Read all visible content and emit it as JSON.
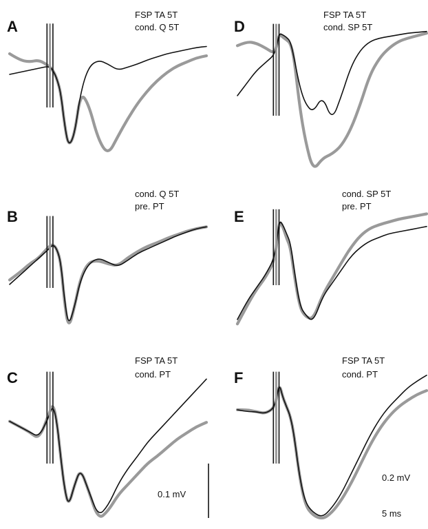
{
  "figure": {
    "panels": [
      {
        "id": "A",
        "letter": "A",
        "label_lines": [
          "FSP TA 5T",
          "cond. Q 5T"
        ]
      },
      {
        "id": "D",
        "letter": "D",
        "label_lines": [
          "FSP TA 5T",
          "cond. SP 5T"
        ]
      },
      {
        "id": "B",
        "letter": "B",
        "label_lines": [
          "cond. Q 5T",
          "pre. PT"
        ]
      },
      {
        "id": "E",
        "letter": "E",
        "label_lines": [
          "cond. SP 5T",
          "pre. PT"
        ]
      },
      {
        "id": "C",
        "letter": "C",
        "label_lines": [
          "FSP TA 5T",
          "cond. PT"
        ]
      },
      {
        "id": "F",
        "letter": "F",
        "label_lines": [
          "FSP TA 5T",
          "cond. PT"
        ]
      }
    ],
    "scale_bars": {
      "C": {
        "label": "0.1 mV"
      },
      "F_voltage": {
        "label": "0.2 mV"
      },
      "F_time": {
        "label": "5 ms"
      }
    },
    "colors": {
      "trace_black": "#111111",
      "trace_gray": "#9a9a9a"
    }
  },
  "chart_data": [
    {
      "type": "line",
      "panel": "A",
      "series": [
        {
          "color": "black",
          "x": [
            0,
            5,
            10,
            15,
            20,
            22,
            24,
            26,
            28,
            30,
            33,
            36,
            40,
            45,
            50,
            55,
            60,
            65,
            70,
            75,
            80,
            85,
            90,
            95,
            100
          ],
          "y": [
            -0.02,
            0.0,
            0.02,
            0.04,
            0.06,
            0.02,
            -0.06,
            -0.2,
            -0.52,
            -0.72,
            -0.6,
            -0.2,
            0.05,
            0.12,
            0.08,
            0.02,
            0.05,
            0.08,
            0.12,
            0.15,
            0.18,
            0.2,
            0.22,
            0.24,
            0.25
          ]
        },
        {
          "color": "gray",
          "x": [
            0,
            5,
            10,
            15,
            20,
            22,
            24,
            26,
            28,
            30,
            33,
            36,
            40,
            45,
            50,
            55,
            60,
            65,
            70,
            75,
            80,
            85,
            90,
            95,
            100
          ],
          "y": [
            0.18,
            0.12,
            0.1,
            0.12,
            0.06,
            0.02,
            -0.06,
            -0.2,
            -0.52,
            -0.72,
            -0.6,
            -0.2,
            -0.3,
            -0.65,
            -0.8,
            -0.62,
            -0.45,
            -0.3,
            -0.18,
            -0.08,
            0.0,
            0.06,
            0.1,
            0.14,
            0.16
          ]
        }
      ]
    },
    {
      "type": "line",
      "panel": "D",
      "series": [
        {
          "color": "black",
          "x": [
            0,
            5,
            10,
            15,
            20,
            22,
            24,
            26,
            28,
            30,
            33,
            36,
            40,
            45,
            50,
            55,
            60,
            65,
            70,
            75,
            80,
            85,
            90,
            95,
            100
          ],
          "y": [
            -0.45,
            -0.3,
            -0.15,
            -0.05,
            0.05,
            0.3,
            0.28,
            0.25,
            0.2,
            0.0,
            -0.35,
            -0.55,
            -0.65,
            -0.45,
            -0.75,
            -0.45,
            -0.1,
            0.1,
            0.2,
            0.24,
            0.26,
            0.28,
            0.3,
            0.31,
            0.32
          ]
        },
        {
          "color": "gray",
          "x": [
            0,
            5,
            10,
            15,
            20,
            22,
            24,
            26,
            28,
            30,
            33,
            36,
            40,
            45,
            50,
            55,
            60,
            65,
            70,
            75,
            80,
            85,
            90,
            95,
            100
          ],
          "y": [
            0.15,
            0.2,
            0.18,
            0.12,
            0.05,
            0.3,
            0.25,
            0.22,
            0.18,
            0.0,
            -0.6,
            -1.0,
            -1.35,
            -1.2,
            -1.15,
            -1.05,
            -0.85,
            -0.55,
            -0.2,
            0.0,
            0.12,
            0.2,
            0.24,
            0.27,
            0.3
          ]
        }
      ]
    },
    {
      "type": "line",
      "panel": "B",
      "series": [
        {
          "color": "black",
          "x": [
            0,
            5,
            10,
            15,
            20,
            22,
            24,
            26,
            28,
            30,
            33,
            36,
            40,
            45,
            50,
            55,
            60,
            65,
            70,
            75,
            80,
            85,
            90,
            95,
            100
          ],
          "y": [
            -0.35,
            -0.25,
            -0.15,
            -0.05,
            0.05,
            0.1,
            0.05,
            -0.1,
            -0.55,
            -0.82,
            -0.6,
            -0.3,
            -0.12,
            -0.05,
            -0.1,
            -0.15,
            -0.08,
            0.0,
            0.05,
            0.1,
            0.15,
            0.2,
            0.24,
            0.28,
            0.3
          ]
        },
        {
          "color": "gray",
          "x": [
            0,
            5,
            10,
            15,
            20,
            22,
            24,
            26,
            28,
            30,
            33,
            36,
            40,
            45,
            50,
            55,
            60,
            65,
            70,
            75,
            80,
            85,
            90,
            95,
            100
          ],
          "y": [
            -0.3,
            -0.22,
            -0.12,
            -0.05,
            0.08,
            0.1,
            0.05,
            -0.1,
            -0.58,
            -0.85,
            -0.6,
            -0.28,
            -0.1,
            -0.08,
            -0.12,
            -0.14,
            -0.05,
            0.02,
            0.08,
            0.12,
            0.17,
            0.21,
            0.25,
            0.28,
            0.3
          ]
        }
      ]
    },
    {
      "type": "line",
      "panel": "E",
      "series": [
        {
          "color": "black",
          "x": [
            0,
            5,
            10,
            15,
            20,
            22,
            24,
            26,
            28,
            30,
            33,
            36,
            40,
            45,
            50,
            55,
            60,
            65,
            70,
            75,
            80,
            85,
            90,
            95,
            100
          ],
          "y": [
            -0.75,
            -0.55,
            -0.4,
            -0.25,
            -0.05,
            0.35,
            0.3,
            0.2,
            0.1,
            -0.2,
            -0.6,
            -0.7,
            -0.78,
            -0.5,
            -0.35,
            -0.2,
            -0.05,
            0.05,
            0.12,
            0.16,
            0.2,
            0.22,
            0.24,
            0.26,
            0.28
          ]
        },
        {
          "color": "gray",
          "x": [
            0,
            5,
            10,
            15,
            20,
            22,
            24,
            26,
            28,
            30,
            33,
            36,
            40,
            45,
            50,
            55,
            60,
            65,
            70,
            75,
            80,
            85,
            90,
            95,
            100
          ],
          "y": [
            -0.8,
            -0.6,
            -0.42,
            -0.28,
            -0.08,
            0.35,
            0.28,
            0.15,
            0.05,
            -0.25,
            -0.62,
            -0.72,
            -0.75,
            -0.48,
            -0.3,
            -0.12,
            0.05,
            0.18,
            0.26,
            0.3,
            0.33,
            0.36,
            0.38,
            0.4,
            0.42
          ]
        }
      ]
    },
    {
      "type": "line",
      "panel": "C",
      "series": [
        {
          "color": "black",
          "x": [
            0,
            5,
            10,
            15,
            20,
            22,
            24,
            26,
            28,
            30,
            33,
            36,
            40,
            45,
            50,
            55,
            60,
            65,
            70,
            75,
            80,
            85,
            90,
            95,
            100
          ],
          "y": [
            0.05,
            0.0,
            -0.05,
            -0.1,
            0.1,
            0.2,
            0.05,
            -0.3,
            -0.6,
            -0.75,
            -0.55,
            -0.4,
            -0.6,
            -0.85,
            -0.75,
            -0.55,
            -0.4,
            -0.28,
            -0.15,
            -0.05,
            0.05,
            0.15,
            0.25,
            0.35,
            0.45
          ]
        },
        {
          "color": "gray",
          "x": [
            0,
            5,
            10,
            15,
            20,
            22,
            24,
            26,
            28,
            30,
            33,
            36,
            40,
            45,
            50,
            55,
            60,
            65,
            70,
            75,
            80,
            85,
            90,
            95,
            100
          ],
          "y": [
            0.05,
            0.0,
            -0.05,
            -0.12,
            0.12,
            0.22,
            0.05,
            -0.3,
            -0.6,
            -0.75,
            -0.55,
            -0.4,
            -0.6,
            -0.88,
            -0.8,
            -0.65,
            -0.55,
            -0.45,
            -0.35,
            -0.28,
            -0.2,
            -0.12,
            -0.06,
            0.0,
            0.04
          ]
        }
      ]
    },
    {
      "type": "line",
      "panel": "F",
      "series": [
        {
          "color": "black",
          "x": [
            0,
            5,
            10,
            15,
            20,
            22,
            24,
            26,
            28,
            30,
            33,
            36,
            40,
            45,
            50,
            55,
            60,
            65,
            70,
            75,
            80,
            85,
            90,
            95,
            100
          ],
          "y": [
            0.02,
            0.0,
            0.0,
            -0.02,
            0.05,
            0.3,
            0.15,
            0.05,
            -0.05,
            -0.25,
            -0.7,
            -0.95,
            -1.05,
            -1.1,
            -1.0,
            -0.85,
            -0.65,
            -0.45,
            -0.25,
            -0.08,
            0.05,
            0.15,
            0.25,
            0.32,
            0.38
          ]
        },
        {
          "color": "gray",
          "x": [
            0,
            5,
            10,
            15,
            20,
            22,
            24,
            26,
            28,
            30,
            33,
            36,
            40,
            45,
            50,
            55,
            60,
            65,
            70,
            75,
            80,
            85,
            90,
            95,
            100
          ],
          "y": [
            0.02,
            0.02,
            0.0,
            -0.02,
            0.05,
            0.3,
            0.15,
            0.05,
            -0.05,
            -0.25,
            -0.7,
            -0.98,
            -1.08,
            -1.12,
            -1.05,
            -0.92,
            -0.75,
            -0.55,
            -0.35,
            -0.18,
            -0.05,
            0.05,
            0.12,
            0.18,
            0.22
          ]
        }
      ]
    }
  ]
}
